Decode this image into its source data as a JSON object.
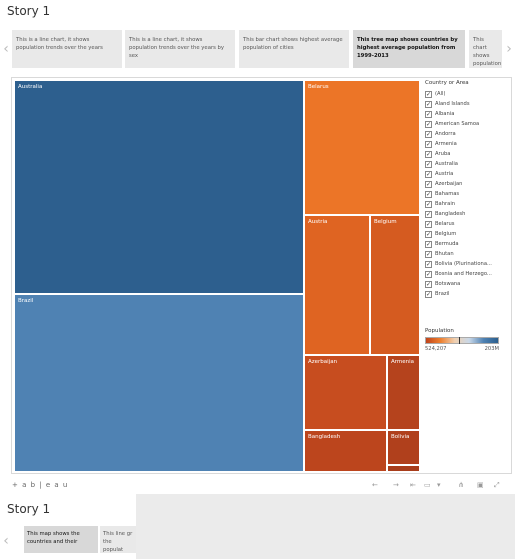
{
  "story": {
    "title": "Story 1",
    "captions": [
      {
        "text": "This is a line chart, it shows population trends over the years",
        "active": false
      },
      {
        "text": "This is a line chart, it shows population trends over the years by sex",
        "active": false
      },
      {
        "text": "This bar chart shows highest average population of cities",
        "active": false
      },
      {
        "text": "This tree map shows countries by highest average population from 1999-2013",
        "active": true
      },
      {
        "text": "This chart shows population by city type",
        "active": false
      }
    ]
  },
  "treemap": {
    "cells": [
      {
        "label": "Australia",
        "color": "#2d5f8e"
      },
      {
        "label": "Brazil",
        "color": "#4f82b3"
      },
      {
        "label": "Belarus",
        "color": "#ec7527"
      },
      {
        "label": "Austria",
        "color": "#df6422"
      },
      {
        "label": "Belgium",
        "color": "#d55b20"
      },
      {
        "label": "Azerbaijan",
        "color": "#c74d1f"
      },
      {
        "label": "Armenia",
        "color": "#b5431d"
      },
      {
        "label": "Bangladesh",
        "color": "#bc451d"
      },
      {
        "label": "Bolivia",
        "color": "#b0401c"
      },
      {
        "label": "",
        "color": "#a83d1b"
      }
    ]
  },
  "filter": {
    "title": "Country or Area",
    "items": [
      "(All)",
      "Åland Islands",
      "Albania",
      "American Samoa",
      "Andorra",
      "Armenia",
      "Aruba",
      "Australia",
      "Austria",
      "Azerbaijan",
      "Bahamas",
      "Bahrain",
      "Bangladesh",
      "Belarus",
      "Belgium",
      "Bermuda",
      "Bhutan",
      "Bolivia (Plurinationa...",
      "Bosnia and Herzego...",
      "Botswana",
      "Brazil"
    ]
  },
  "legend": {
    "title": "Population",
    "min_label": "524,207",
    "max_label": "203M"
  },
  "toolbar": {
    "logo": "+ a b | e a u"
  },
  "second_story": {
    "title": "Story 1",
    "captions": [
      {
        "text": "This map shows the countries and their"
      },
      {
        "text": "This line gr the populat"
      }
    ]
  },
  "icons": {
    "prev": "chevron-left-icon",
    "next": "chevron-right-icon",
    "undo": "undo-icon",
    "redo": "redo-icon",
    "revert": "revert-icon",
    "share": "share-icon",
    "download": "download-icon",
    "fullscreen": "fullscreen-icon"
  }
}
